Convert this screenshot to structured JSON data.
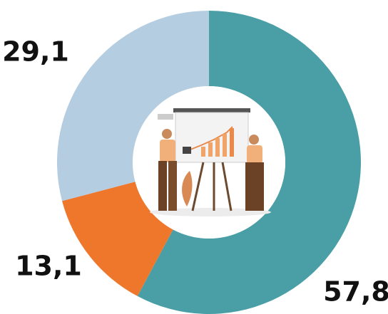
{
  "chart_data": {
    "type": "donut",
    "values": [
      57.8,
      13.1,
      29.1
    ],
    "value_labels": [
      "57,8",
      "13,1",
      "29,1"
    ],
    "colors": [
      "#4a9fa6",
      "#ef772c",
      "#b5cde1"
    ]
  }
}
